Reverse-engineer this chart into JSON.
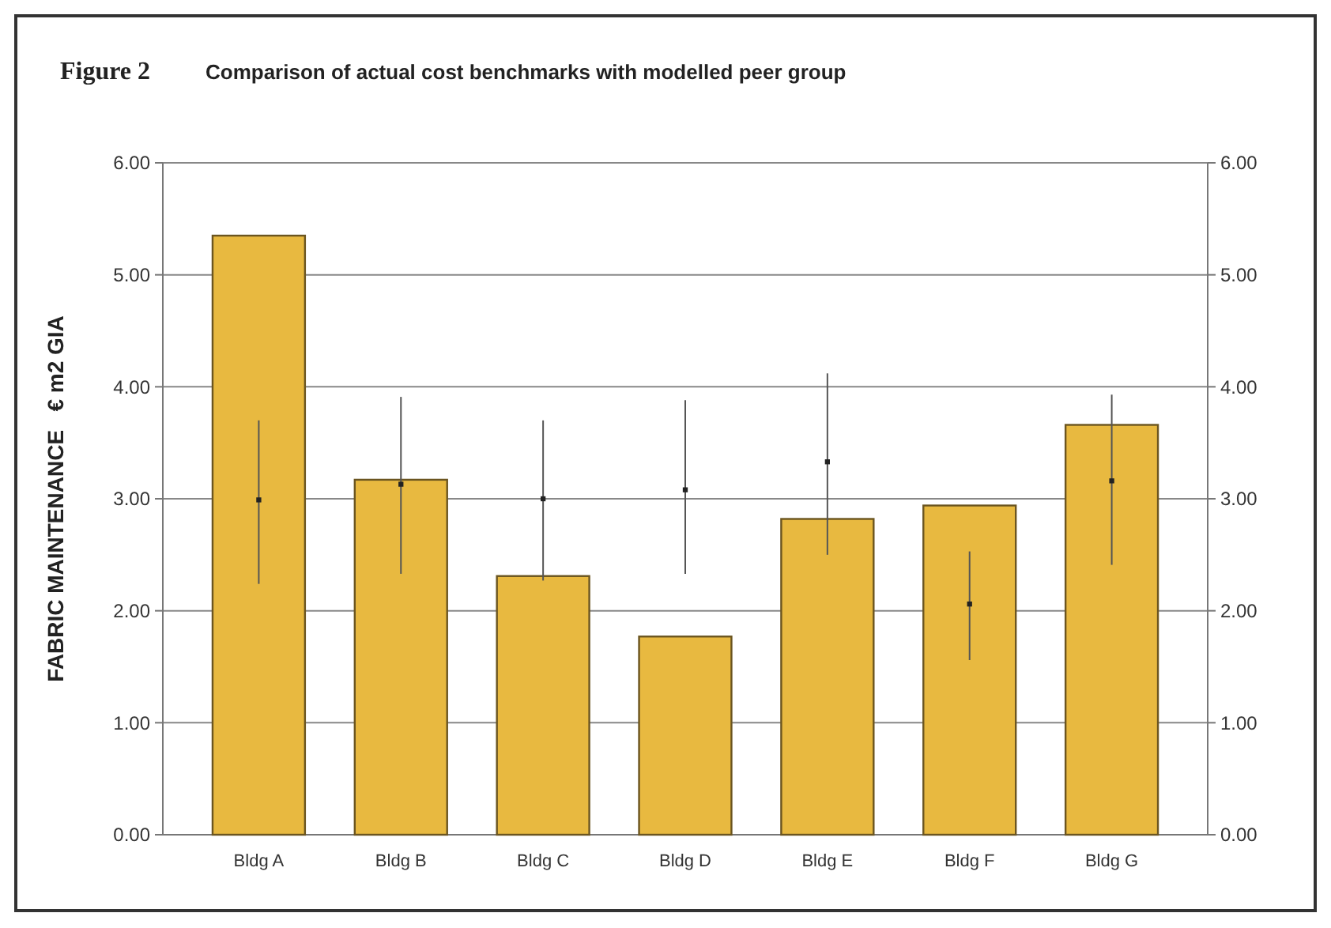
{
  "chart_data": {
    "type": "bar",
    "title": "Comparison of actual cost benchmarks with modelled peer group",
    "annotations": [
      "Figure 2"
    ],
    "ylabel": "FABRIC MAINTENANCE   € m2 GIA",
    "categories": [
      "Bldg A",
      "Bldg B",
      "Bldg C",
      "Bldg D",
      "Bldg E",
      "Bldg F",
      "Bldg G"
    ],
    "series": [
      {
        "color": "#e8b940",
        "values": [
          5.35,
          3.17,
          2.31,
          1.77,
          2.82,
          2.94,
          3.66
        ]
      },
      {
        "type": "scatter",
        "color": "#222222",
        "x": [
          "Bldg A",
          "Bldg B",
          "Bldg C",
          "Bldg D",
          "Bldg E",
          "Bldg F",
          "Bldg G"
        ],
        "values": [
          2.99,
          3.13,
          3.0,
          3.08,
          3.33,
          2.06,
          3.16
        ],
        "errors": [
          [
            2.24,
            3.7
          ],
          [
            2.33,
            3.91
          ],
          [
            2.27,
            3.7
          ],
          [
            2.33,
            3.88
          ],
          [
            2.5,
            4.12
          ],
          [
            1.56,
            2.53
          ],
          [
            2.41,
            3.93
          ]
        ]
      }
    ],
    "ylim": [
      0,
      6
    ],
    "yticks": [
      {
        "value": 0,
        "label": "0.00"
      },
      {
        "value": 1,
        "label": "1.00"
      },
      {
        "value": 2,
        "label": "2.00"
      },
      {
        "value": 3,
        "label": "3.00"
      },
      {
        "value": 4,
        "label": "4.00"
      },
      {
        "value": 5,
        "label": "5.00"
      },
      {
        "value": 6,
        "label": "6.00"
      }
    ],
    "y2lim": [
      0,
      6
    ],
    "y2ticks": [
      {
        "value": 0,
        "label": "0.00"
      },
      {
        "value": 1,
        "label": "1.00"
      },
      {
        "value": 2,
        "label": "2.00"
      },
      {
        "value": 3,
        "label": "3.00"
      },
      {
        "value": 4,
        "label": "4.00"
      },
      {
        "value": 5,
        "label": "5.00"
      },
      {
        "value": 6,
        "label": "6.00"
      }
    ],
    "grid": "y",
    "marker": "square"
  }
}
